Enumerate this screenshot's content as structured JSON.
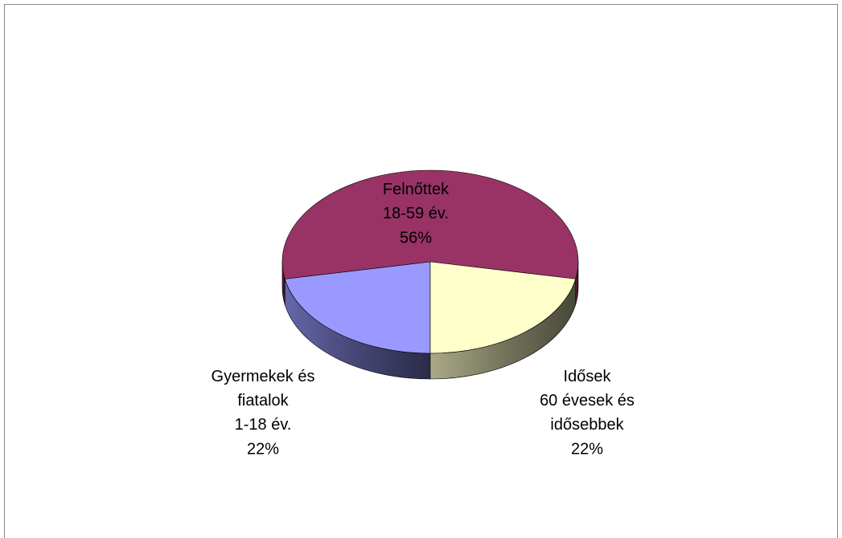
{
  "chart_data": {
    "type": "pie",
    "categories": [
      "Gyermekek és\nfiatalok\n1-18 év.",
      "Felnőttek\n18-59 év.",
      "Idősek\n60 évesek és\nidősebbek"
    ],
    "values": [
      22,
      56,
      22
    ],
    "value_labels": [
      "22%",
      "56%",
      "22%"
    ],
    "colors": [
      "#9999ff",
      "#993366",
      "#ffffcc"
    ],
    "three_d": true
  }
}
